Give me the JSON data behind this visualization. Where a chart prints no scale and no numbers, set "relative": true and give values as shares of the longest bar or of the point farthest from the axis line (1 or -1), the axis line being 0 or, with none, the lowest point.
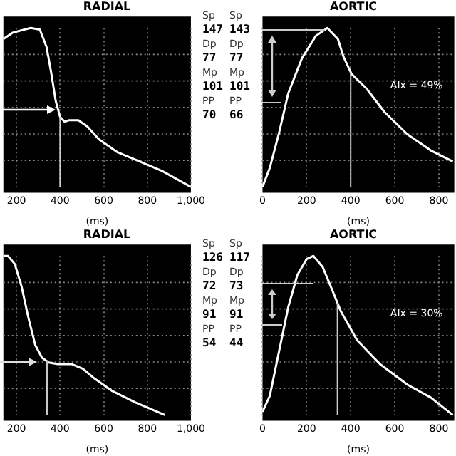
{
  "chart_data": [
    {
      "type": "line",
      "title": "RADIAL",
      "xlabel": "(ms)",
      "relative": true,
      "grid": true,
      "xlim": [
        140,
        1000
      ],
      "xticks": [
        200,
        400,
        600,
        800,
        {
          "value": 1000,
          "label": "1,000"
        }
      ],
      "x": [
        140,
        182,
        265,
        307,
        338,
        359,
        380,
        400,
        421,
        442,
        484,
        525,
        578,
        661,
        765,
        869,
        1000
      ],
      "series": [
        {
          "color": "#ffffff",
          "values": [
            0.93,
            0.97,
            1.0,
            0.99,
            0.88,
            0.72,
            0.54,
            0.44,
            0.41,
            0.42,
            0.42,
            0.38,
            0.3,
            0.22,
            0.16,
            0.1,
            0
          ]
        }
      ],
      "ref_lines": [
        {
          "axis": "x",
          "value": 400,
          "color": "#cccccc"
        }
      ],
      "annotations": [
        "Sp",
        "147",
        "Dp",
        "77",
        "Mp",
        "101",
        "PP",
        "70"
      ]
    },
    {
      "type": "line",
      "title": "AORTIC",
      "xlabel": "(ms)",
      "relative": true,
      "grid": true,
      "xlim": [
        0,
        870
      ],
      "xticks": [
        0,
        200,
        400,
        600,
        800
      ],
      "x": [
        0,
        33,
        75,
        117,
        179,
        242,
        294,
        342,
        367,
        404,
        471,
        554,
        658,
        763,
        863
      ],
      "series": [
        {
          "color": "#ffffff",
          "values": [
            0,
            0.12,
            0.34,
            0.59,
            0.81,
            0.95,
            1.0,
            0.93,
            0.82,
            0.71,
            0.62,
            0.47,
            0.33,
            0.23,
            0.16
          ]
        }
      ],
      "ref_lines": [
        {
          "axis": "x",
          "value": 400,
          "color": "#cccccc"
        }
      ],
      "annotations": [
        "Sp",
        "143",
        "Dp",
        "77",
        "Mp",
        "101",
        "PP",
        "66",
        "AIx = 49%"
      ]
    },
    {
      "type": "line",
      "title": "RADIAL",
      "xlabel": "(ms)",
      "relative": true,
      "grid": true,
      "xlim": [
        140,
        1000
      ],
      "xticks": [
        200,
        400,
        600,
        800,
        {
          "value": 1000,
          "label": "1,000"
        }
      ],
      "x": [
        140,
        161,
        192,
        223,
        255,
        286,
        317,
        348,
        390,
        452,
        505,
        557,
        640,
        744,
        880
      ],
      "series": [
        {
          "color": "#ffffff",
          "values": [
            1.0,
            1.0,
            0.95,
            0.81,
            0.61,
            0.44,
            0.36,
            0.33,
            0.32,
            0.32,
            0.29,
            0.23,
            0.15,
            0.08,
            0
          ]
        }
      ],
      "ref_lines": [
        {
          "axis": "x",
          "value": 340,
          "color": "#cccccc"
        }
      ],
      "annotations": [
        "Sp",
        "126",
        "Dp",
        "72",
        "Mp",
        "91",
        "PP",
        "54"
      ]
    },
    {
      "type": "line",
      "title": "AORTIC",
      "xlabel": "(ms)",
      "relative": true,
      "grid": true,
      "xlim": [
        0,
        870
      ],
      "xticks": [
        0,
        200,
        400,
        600,
        800
      ],
      "x": [
        0,
        33,
        75,
        117,
        158,
        200,
        231,
        273,
        315,
        356,
        429,
        533,
        658,
        763,
        863
      ],
      "series": [
        {
          "color": "#ffffff",
          "values": [
            0.02,
            0.12,
            0.4,
            0.68,
            0.88,
            0.98,
            1.0,
            0.93,
            0.79,
            0.65,
            0.47,
            0.32,
            0.19,
            0.11,
            0
          ]
        }
      ],
      "ref_lines": [
        {
          "axis": "x",
          "value": 340,
          "color": "#cccccc"
        }
      ],
      "annotations": [
        "Sp",
        "117",
        "Dp",
        "73",
        "Mp",
        "91",
        "PP",
        "44",
        "AIx = 30%"
      ]
    }
  ]
}
